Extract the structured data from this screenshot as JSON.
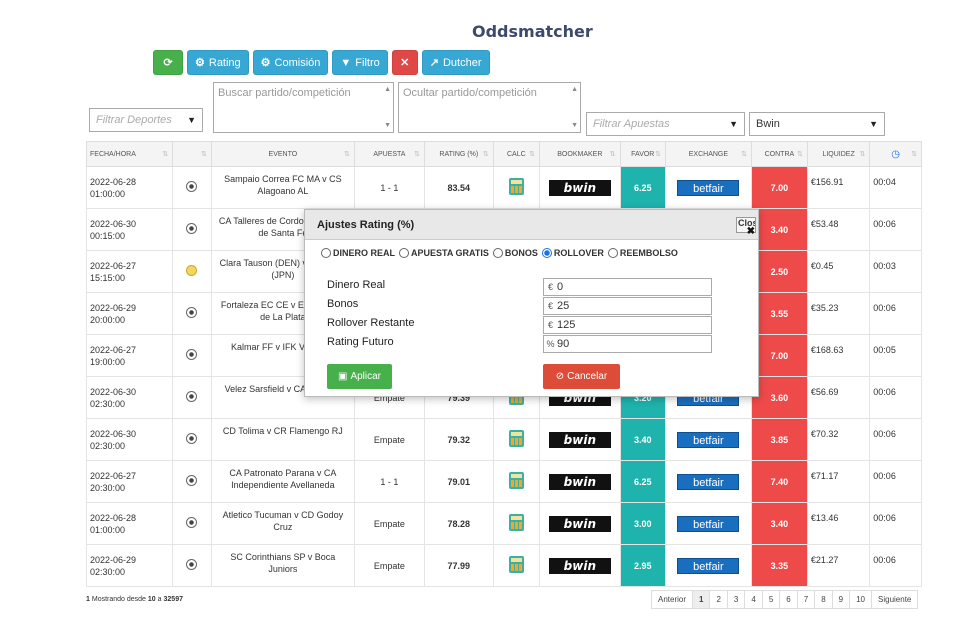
{
  "title": "Oddsmatcher",
  "toolbar": {
    "refresh_icon": "refresh-icon",
    "rating_label": "Rating",
    "comision_label": "Comisión",
    "filtro_label": "Filtro",
    "clear_icon": "x-icon",
    "dutcher_label": "Dutcher"
  },
  "filters": {
    "deportes_placeholder": "Filtrar Deportes",
    "buscar_placeholder": "Buscar partido/competición",
    "ocultar_placeholder": "Ocultar partido/competición",
    "apuestas_placeholder": "Filtrar Apuestas",
    "bookmaker_value": "Bwin"
  },
  "table": {
    "headers": [
      "FECHA/HORA",
      "",
      "EVENTO",
      "APUESTA",
      "RATING (%)",
      "CALC",
      "BOOKMAKER",
      "FAVOR",
      "EXCHANGE",
      "CONTRA",
      "LIQUIDEZ",
      ""
    ],
    "rows": [
      {
        "fecha": "2022-06-28",
        "hora": "01:00:00",
        "sport": "soccer",
        "evento": "Sampaio Correa FC MA v CS Alagoano AL",
        "apuesta": "1 - 1",
        "rating": "83.54",
        "bookmaker": "bwin",
        "favor": "6.25",
        "exchange": "betfair",
        "contra": "7.00",
        "liquidez": "€156.91",
        "tiempo": "00:04"
      },
      {
        "fecha": "2022-06-30",
        "hora": "00:15:00",
        "sport": "soccer",
        "evento": "CA Talleres de Cordoba v Colon de Santa Fe",
        "apuesta": "",
        "rating": "",
        "bookmaker": "",
        "favor": "",
        "exchange": "",
        "contra": "3.40",
        "liquidez": "€53.48",
        "tiempo": "00:06"
      },
      {
        "fecha": "2022-06-27",
        "hora": "15:15:00",
        "sport": "tennis",
        "evento": "Clara Tauson (DEN) v Hontama (JPN)",
        "apuesta": "",
        "rating": "",
        "bookmaker": "",
        "favor": "",
        "exchange": "",
        "contra": "2.50",
        "liquidez": "€0.45",
        "tiempo": "00:03"
      },
      {
        "fecha": "2022-06-29",
        "hora": "20:00:00",
        "sport": "soccer",
        "evento": "Fortaleza EC CE v Estudiantes de La Plata",
        "apuesta": "",
        "rating": "",
        "bookmaker": "",
        "favor": "",
        "exchange": "",
        "contra": "3.55",
        "liquidez": "€35.23",
        "tiempo": "00:06"
      },
      {
        "fecha": "2022-06-27",
        "hora": "19:00:00",
        "sport": "soccer",
        "evento": "Kalmar FF v IFK Varnamo",
        "apuesta": "",
        "rating": "",
        "bookmaker": "",
        "favor": "",
        "exchange": "",
        "contra": "7.00",
        "liquidez": "€168.63",
        "tiempo": "00:05"
      },
      {
        "fecha": "2022-06-30",
        "hora": "02:30:00",
        "sport": "soccer",
        "evento": "Velez Sarsfield v CA La Plata",
        "apuesta": "Empate",
        "rating": "79.39",
        "bookmaker": "bwin",
        "favor": "3.20",
        "exchange": "betfair",
        "contra": "3.60",
        "liquidez": "€56.69",
        "tiempo": "00:06"
      },
      {
        "fecha": "2022-06-30",
        "hora": "02:30:00",
        "sport": "soccer",
        "evento": "CD Tolima v CR Flamengo RJ",
        "apuesta": "Empate",
        "rating": "79.32",
        "bookmaker": "bwin",
        "favor": "3.40",
        "exchange": "betfair",
        "contra": "3.85",
        "liquidez": "€70.32",
        "tiempo": "00:06"
      },
      {
        "fecha": "2022-06-27",
        "hora": "20:30:00",
        "sport": "soccer",
        "evento": "CA Patronato Parana v CA Independiente Avellaneda",
        "apuesta": "1 - 1",
        "rating": "79.01",
        "bookmaker": "bwin",
        "favor": "6.25",
        "exchange": "betfair",
        "contra": "7.40",
        "liquidez": "€71.17",
        "tiempo": "00:06"
      },
      {
        "fecha": "2022-06-28",
        "hora": "01:00:00",
        "sport": "soccer",
        "evento": "Atletico Tucuman v CD Godoy Cruz",
        "apuesta": "Empate",
        "rating": "78.28",
        "bookmaker": "bwin",
        "favor": "3.00",
        "exchange": "betfair",
        "contra": "3.40",
        "liquidez": "€13.46",
        "tiempo": "00:06"
      },
      {
        "fecha": "2022-06-29",
        "hora": "02:30:00",
        "sport": "soccer",
        "evento": "SC Corinthians SP v Boca Juniors",
        "apuesta": "Empate",
        "rating": "77.99",
        "bookmaker": "bwin",
        "favor": "2.95",
        "exchange": "betfair",
        "contra": "3.35",
        "liquidez": "€21.27",
        "tiempo": "00:06"
      }
    ]
  },
  "footer": {
    "info_page": "1",
    "info_text": "Mostrando desde",
    "info_count": "10",
    "info_a": "a",
    "info_total": "32597",
    "pager": [
      "Anterior",
      "1",
      "2",
      "3",
      "4",
      "5",
      "6",
      "7",
      "8",
      "9",
      "10",
      "Siguiente"
    ]
  },
  "modal": {
    "title": "Ajustes Rating (%)",
    "close_label": "Close",
    "radios": [
      "DINERO REAL",
      "APUESTA GRATIS",
      "BONOS",
      "ROLLOVER",
      "REEMBOLSO"
    ],
    "selected_radio": "ROLLOVER",
    "fields": [
      {
        "label": "Dinero Real",
        "unit": "€",
        "value": "0"
      },
      {
        "label": "Bonos",
        "unit": "€",
        "value": "25"
      },
      {
        "label": "Rollover Restante",
        "unit": "€",
        "value": "125"
      },
      {
        "label": "Rating Futuro",
        "unit": "%",
        "value": "90"
      }
    ],
    "apply_label": "Aplicar",
    "cancel_label": "Cancelar"
  }
}
